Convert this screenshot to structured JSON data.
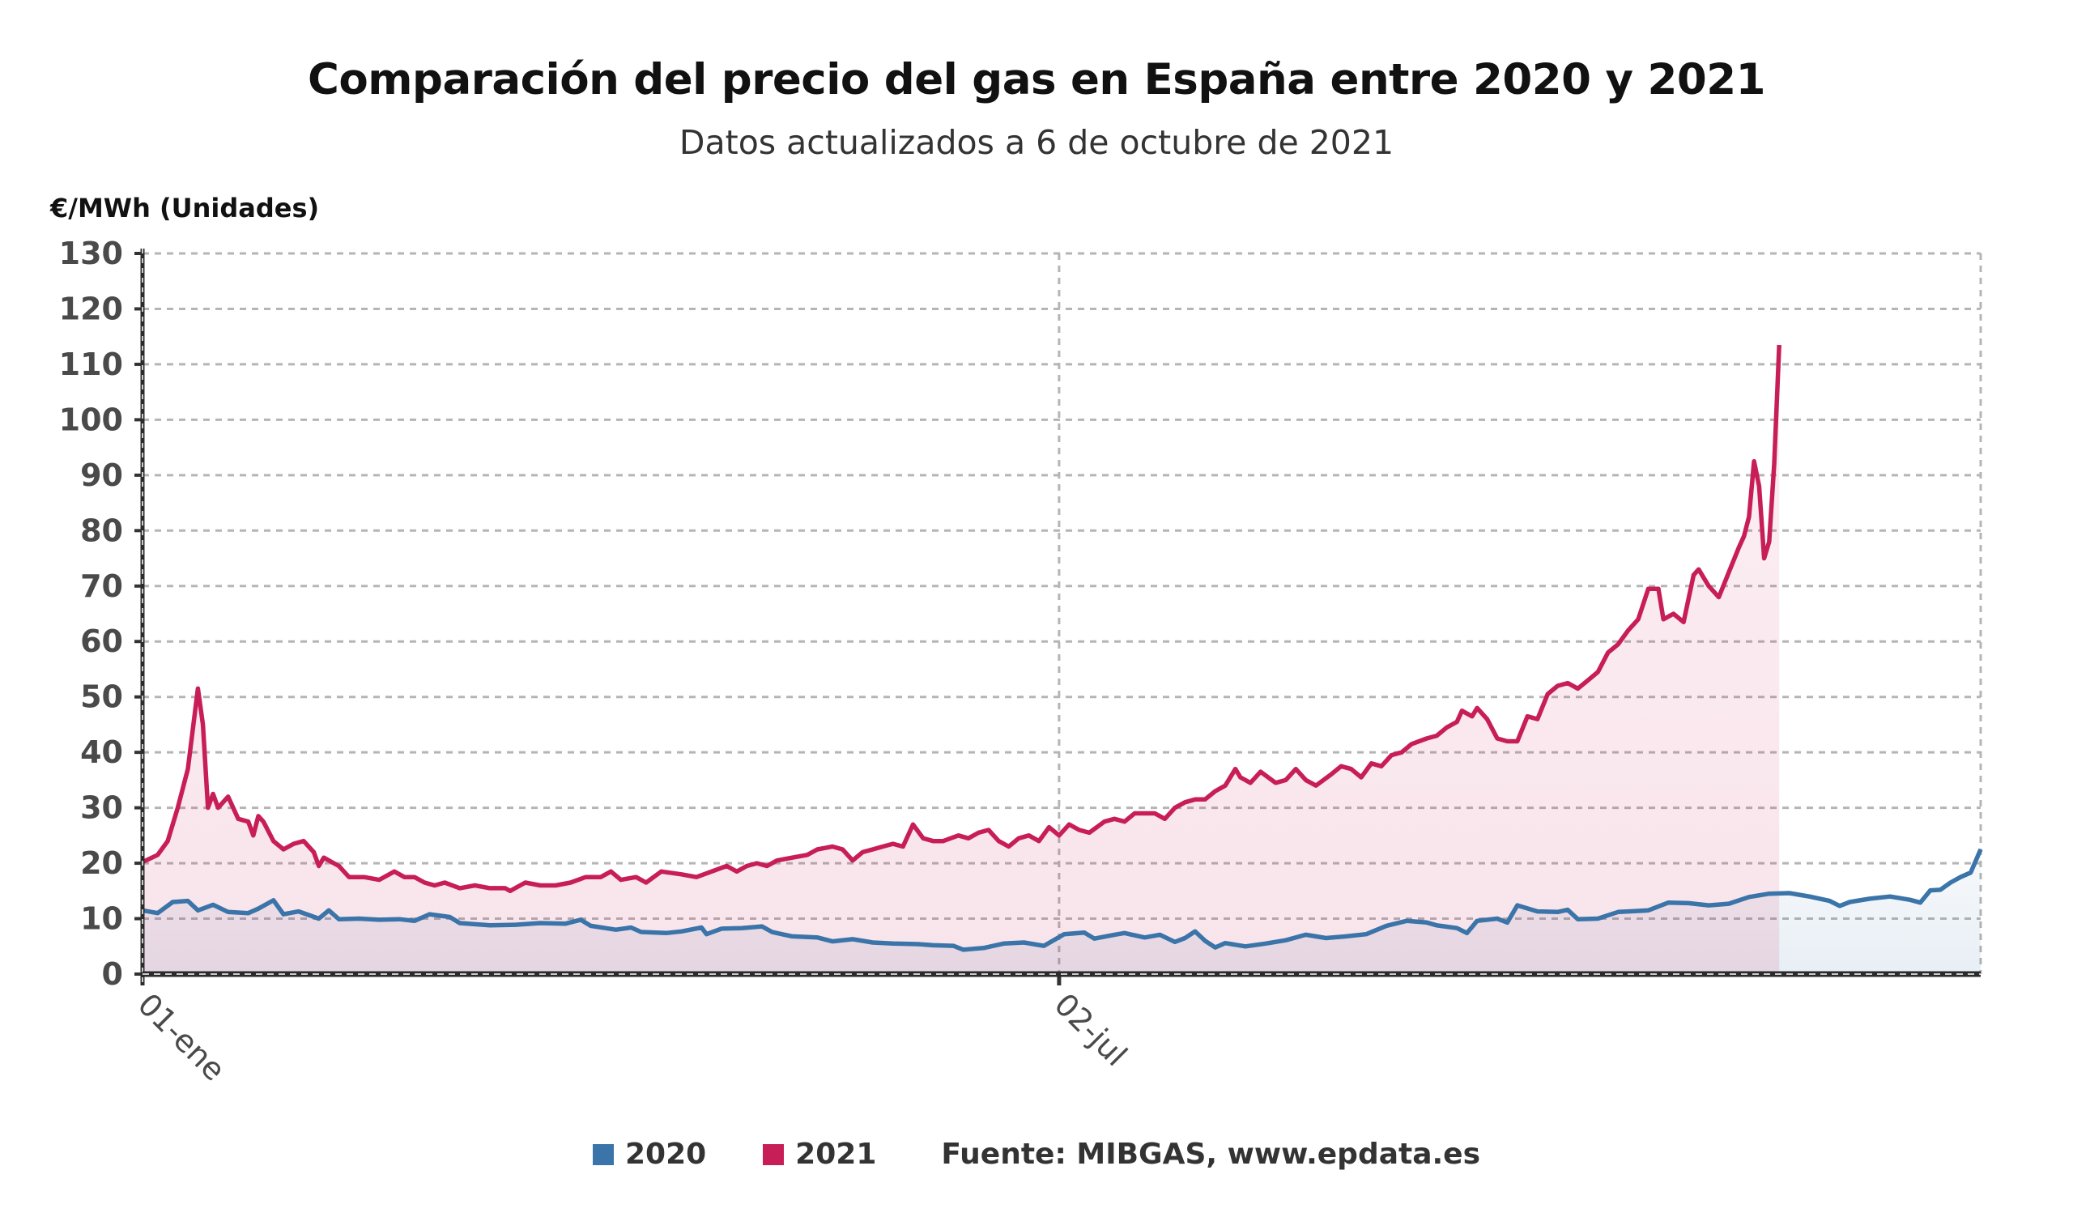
{
  "chart_data": {
    "type": "line",
    "title": "Comparación del precio del gas en España entre 2020 y 2021",
    "subtitle": "Datos actualizados a 6 de octubre de 2021",
    "ylabel": "€/MWh (Unidades)",
    "xlabel": "",
    "ylim": [
      0,
      130
    ],
    "yticks": [
      0,
      10,
      20,
      30,
      40,
      50,
      60,
      70,
      80,
      90,
      100,
      110,
      120,
      130
    ],
    "xticks": [
      {
        "day": 1,
        "label": "01-ene"
      },
      {
        "day": 183,
        "label": "02-jul"
      }
    ],
    "xlim_days": [
      1,
      366
    ],
    "grid": true,
    "area_fill": true,
    "legend_position": "bottom",
    "source": "Fuente: MIBGAS, www.epdata.es",
    "series": [
      {
        "name": "2020",
        "color": "#3a74a8",
        "points": [
          [
            1,
            11.5
          ],
          [
            4,
            11.0
          ],
          [
            7,
            13.0
          ],
          [
            10,
            13.2
          ],
          [
            12,
            11.5
          ],
          [
            15,
            12.5
          ],
          [
            18,
            11.2
          ],
          [
            22,
            11.0
          ],
          [
            24,
            11.8
          ],
          [
            27,
            13.3
          ],
          [
            29,
            10.8
          ],
          [
            32,
            11.3
          ],
          [
            36,
            10.0
          ],
          [
            38,
            11.5
          ],
          [
            40,
            9.9
          ],
          [
            44,
            10.0
          ],
          [
            48,
            9.8
          ],
          [
            52,
            9.9
          ],
          [
            55,
            9.6
          ],
          [
            58,
            10.8
          ],
          [
            62,
            10.3
          ],
          [
            64,
            9.2
          ],
          [
            70,
            8.8
          ],
          [
            75,
            8.9
          ],
          [
            80,
            9.2
          ],
          [
            85,
            9.1
          ],
          [
            88,
            9.8
          ],
          [
            90,
            8.7
          ],
          [
            95,
            8.0
          ],
          [
            98,
            8.4
          ],
          [
            100,
            7.6
          ],
          [
            105,
            7.4
          ],
          [
            108,
            7.7
          ],
          [
            112,
            8.4
          ],
          [
            113,
            7.2
          ],
          [
            116,
            8.2
          ],
          [
            120,
            8.3
          ],
          [
            124,
            8.6
          ],
          [
            126,
            7.6
          ],
          [
            130,
            6.8
          ],
          [
            135,
            6.6
          ],
          [
            138,
            5.9
          ],
          [
            142,
            6.3
          ],
          [
            146,
            5.7
          ],
          [
            150,
            5.5
          ],
          [
            155,
            5.4
          ],
          [
            158,
            5.2
          ],
          [
            162,
            5.1
          ],
          [
            164,
            4.4
          ],
          [
            168,
            4.7
          ],
          [
            172,
            5.5
          ],
          [
            176,
            5.7
          ],
          [
            180,
            5.1
          ],
          [
            184,
            7.2
          ],
          [
            188,
            7.5
          ],
          [
            190,
            6.4
          ],
          [
            194,
            7.1
          ],
          [
            196,
            7.4
          ],
          [
            198,
            7.0
          ],
          [
            200,
            6.6
          ],
          [
            203,
            7.1
          ],
          [
            206,
            5.8
          ],
          [
            208,
            6.5
          ],
          [
            210,
            7.7
          ],
          [
            212,
            6.0
          ],
          [
            214,
            4.8
          ],
          [
            216,
            5.6
          ],
          [
            220,
            5.0
          ],
          [
            224,
            5.5
          ],
          [
            228,
            6.1
          ],
          [
            232,
            7.1
          ],
          [
            236,
            6.5
          ],
          [
            240,
            6.8
          ],
          [
            244,
            7.2
          ],
          [
            248,
            8.7
          ],
          [
            252,
            9.6
          ],
          [
            256,
            9.3
          ],
          [
            258,
            8.8
          ],
          [
            262,
            8.3
          ],
          [
            264,
            7.4
          ],
          [
            266,
            9.6
          ],
          [
            270,
            10.0
          ],
          [
            272,
            9.3
          ],
          [
            274,
            12.4
          ],
          [
            278,
            11.3
          ],
          [
            282,
            11.2
          ],
          [
            284,
            11.6
          ],
          [
            286,
            9.9
          ],
          [
            290,
            10.0
          ],
          [
            294,
            11.2
          ],
          [
            298,
            11.4
          ],
          [
            300,
            11.5
          ],
          [
            304,
            12.9
          ],
          [
            308,
            12.8
          ],
          [
            312,
            12.4
          ],
          [
            316,
            12.7
          ],
          [
            320,
            13.9
          ],
          [
            324,
            14.5
          ],
          [
            328,
            14.6
          ],
          [
            332,
            14.0
          ],
          [
            336,
            13.2
          ],
          [
            338,
            12.3
          ],
          [
            340,
            13.0
          ],
          [
            344,
            13.6
          ],
          [
            348,
            14.0
          ],
          [
            352,
            13.4
          ],
          [
            354,
            12.9
          ],
          [
            356,
            15.1
          ],
          [
            358,
            15.2
          ],
          [
            360,
            16.5
          ],
          [
            362,
            17.5
          ],
          [
            364,
            18.3
          ],
          [
            366,
            22.5
          ]
        ],
        "points_note": "values read off chart; later portion (Oct–Dec) continues rising to ~22"
      },
      {
        "name": "2021",
        "color": "#c81e58",
        "points": [
          [
            1,
            20.2
          ],
          [
            4,
            21.5
          ],
          [
            6,
            24.0
          ],
          [
            8,
            30.0
          ],
          [
            10,
            37.0
          ],
          [
            12,
            51.5
          ],
          [
            13,
            45.0
          ],
          [
            14,
            30.0
          ],
          [
            15,
            32.5
          ],
          [
            16,
            30.0
          ],
          [
            18,
            32.0
          ],
          [
            20,
            28.0
          ],
          [
            22,
            27.5
          ],
          [
            23,
            25.0
          ],
          [
            24,
            28.5
          ],
          [
            25,
            27.5
          ],
          [
            27,
            24.0
          ],
          [
            29,
            22.5
          ],
          [
            31,
            23.5
          ],
          [
            33,
            24.0
          ],
          [
            35,
            22.0
          ],
          [
            36,
            19.5
          ],
          [
            37,
            21.0
          ],
          [
            39,
            20.0
          ],
          [
            40,
            19.5
          ],
          [
            42,
            17.5
          ],
          [
            45,
            17.5
          ],
          [
            48,
            17.0
          ],
          [
            51,
            18.5
          ],
          [
            53,
            17.5
          ],
          [
            55,
            17.5
          ],
          [
            57,
            16.5
          ],
          [
            59,
            16.0
          ],
          [
            61,
            16.5
          ],
          [
            64,
            15.5
          ],
          [
            67,
            16.0
          ],
          [
            70,
            15.5
          ],
          [
            73,
            15.5
          ],
          [
            74,
            15.0
          ],
          [
            77,
            16.5
          ],
          [
            80,
            16.0
          ],
          [
            83,
            16.0
          ],
          [
            86,
            16.5
          ],
          [
            89,
            17.5
          ],
          [
            92,
            17.5
          ],
          [
            94,
            18.5
          ],
          [
            96,
            17.0
          ],
          [
            99,
            17.5
          ],
          [
            101,
            16.5
          ],
          [
            104,
            18.5
          ],
          [
            108,
            18.0
          ],
          [
            111,
            17.5
          ],
          [
            114,
            18.5
          ],
          [
            117,
            19.5
          ],
          [
            119,
            18.5
          ],
          [
            121,
            19.5
          ],
          [
            123,
            20.0
          ],
          [
            125,
            19.5
          ],
          [
            127,
            20.5
          ],
          [
            130,
            21.0
          ],
          [
            133,
            21.5
          ],
          [
            135,
            22.5
          ],
          [
            138,
            23.0
          ],
          [
            140,
            22.5
          ],
          [
            142,
            20.5
          ],
          [
            144,
            22.0
          ],
          [
            146,
            22.5
          ],
          [
            148,
            23.0
          ],
          [
            150,
            23.5
          ],
          [
            152,
            23.0
          ],
          [
            154,
            27.0
          ],
          [
            156,
            24.5
          ],
          [
            158,
            24.0
          ],
          [
            160,
            24.0
          ],
          [
            163,
            25.0
          ],
          [
            165,
            24.5
          ],
          [
            167,
            25.5
          ],
          [
            169,
            26.0
          ],
          [
            171,
            24.0
          ],
          [
            173,
            23.0
          ],
          [
            175,
            24.5
          ],
          [
            177,
            25.0
          ],
          [
            179,
            24.0
          ],
          [
            181,
            26.5
          ],
          [
            183,
            25.0
          ],
          [
            185,
            27.0
          ],
          [
            187,
            26.0
          ],
          [
            189,
            25.5
          ],
          [
            192,
            27.5
          ],
          [
            194,
            28.0
          ],
          [
            196,
            27.5
          ],
          [
            198,
            29.0
          ],
          [
            200,
            29.0
          ],
          [
            202,
            29.0
          ],
          [
            204,
            28.0
          ],
          [
            206,
            30.0
          ],
          [
            208,
            31.0
          ],
          [
            210,
            31.5
          ],
          [
            212,
            31.5
          ],
          [
            214,
            33.0
          ],
          [
            216,
            34.0
          ],
          [
            218,
            37.0
          ],
          [
            219,
            35.5
          ],
          [
            221,
            34.5
          ],
          [
            223,
            36.5
          ],
          [
            226,
            34.5
          ],
          [
            228,
            35.0
          ],
          [
            230,
            37.0
          ],
          [
            232,
            35.0
          ],
          [
            234,
            34.0
          ],
          [
            237,
            36.0
          ],
          [
            239,
            37.5
          ],
          [
            241,
            37.0
          ],
          [
            243,
            35.5
          ],
          [
            245,
            38.0
          ],
          [
            247,
            37.5
          ],
          [
            249,
            39.5
          ],
          [
            251,
            40.0
          ],
          [
            253,
            41.5
          ],
          [
            256,
            42.5
          ],
          [
            258,
            43.0
          ],
          [
            260,
            44.5
          ],
          [
            262,
            45.5
          ],
          [
            263,
            47.5
          ],
          [
            265,
            46.5
          ],
          [
            266,
            48.0
          ],
          [
            268,
            46.0
          ],
          [
            270,
            42.5
          ],
          [
            272,
            42.0
          ],
          [
            274,
            42.0
          ],
          [
            276,
            46.5
          ],
          [
            278,
            46.0
          ],
          [
            280,
            50.5
          ],
          [
            282,
            52.0
          ],
          [
            284,
            52.5
          ],
          [
            286,
            51.5
          ],
          [
            288,
            53.0
          ],
          [
            290,
            54.5
          ],
          [
            292,
            58.0
          ],
          [
            294,
            59.5
          ],
          [
            296,
            62.0
          ],
          [
            298,
            64.0
          ],
          [
            300,
            69.5
          ],
          [
            302,
            69.5
          ],
          [
            303,
            64.0
          ],
          [
            305,
            65.0
          ],
          [
            307,
            63.5
          ],
          [
            309,
            72.0
          ],
          [
            310,
            73.0
          ],
          [
            312,
            70.0
          ],
          [
            314,
            68.0
          ],
          [
            316,
            72.5
          ],
          [
            318,
            77.0
          ],
          [
            319,
            79.0
          ],
          [
            320,
            82.5
          ],
          [
            321,
            92.5
          ],
          [
            322,
            88.0
          ],
          [
            323,
            75.0
          ],
          [
            324,
            78.0
          ],
          [
            325,
            92.0
          ],
          [
            326,
            113.5
          ]
        ]
      }
    ]
  },
  "legend": {
    "items": [
      {
        "label": "2020",
        "color": "#3a74a8"
      },
      {
        "label": "2021",
        "color": "#c81e58"
      }
    ],
    "source": "Fuente: MIBGAS, www.epdata.es"
  }
}
